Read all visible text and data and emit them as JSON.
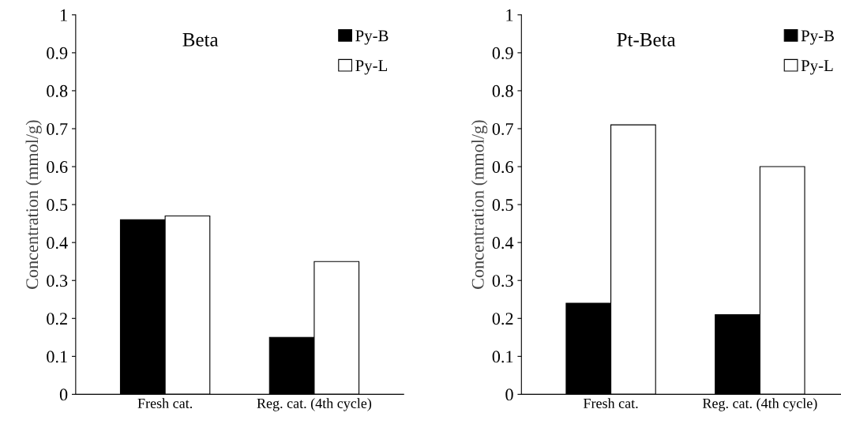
{
  "chart_data": [
    {
      "type": "bar",
      "title": "Beta",
      "ylabel": "Concentration (mmol/g)",
      "categories": [
        "Fresh cat.",
        "Reg. cat. (4th cycle)"
      ],
      "ylim": [
        0,
        1
      ],
      "yticks": [
        0,
        0.1,
        0.2,
        0.3,
        0.4,
        0.5,
        0.6,
        0.7,
        0.8,
        0.9,
        1
      ],
      "legend": "top right",
      "grid": false,
      "series": [
        {
          "name": "Py-B",
          "color": "#000000",
          "values": [
            0.46,
            0.15
          ]
        },
        {
          "name": "Py-L",
          "color": "#ffffff",
          "values": [
            0.47,
            0.35
          ]
        }
      ]
    },
    {
      "type": "bar",
      "title": "Pt-Beta",
      "ylabel": "Concentration (mmol/g)",
      "categories": [
        "Fresh cat.",
        "Reg. cat. (4th cycle)"
      ],
      "ylim": [
        0,
        1
      ],
      "yticks": [
        0,
        0.1,
        0.2,
        0.3,
        0.4,
        0.5,
        0.6,
        0.7,
        0.8,
        0.9,
        1
      ],
      "legend": "top right",
      "grid": false,
      "series": [
        {
          "name": "Py-B",
          "color": "#000000",
          "values": [
            0.24,
            0.21
          ]
        },
        {
          "name": "Py-L",
          "color": "#ffffff",
          "values": [
            0.71,
            0.6
          ]
        }
      ]
    }
  ]
}
